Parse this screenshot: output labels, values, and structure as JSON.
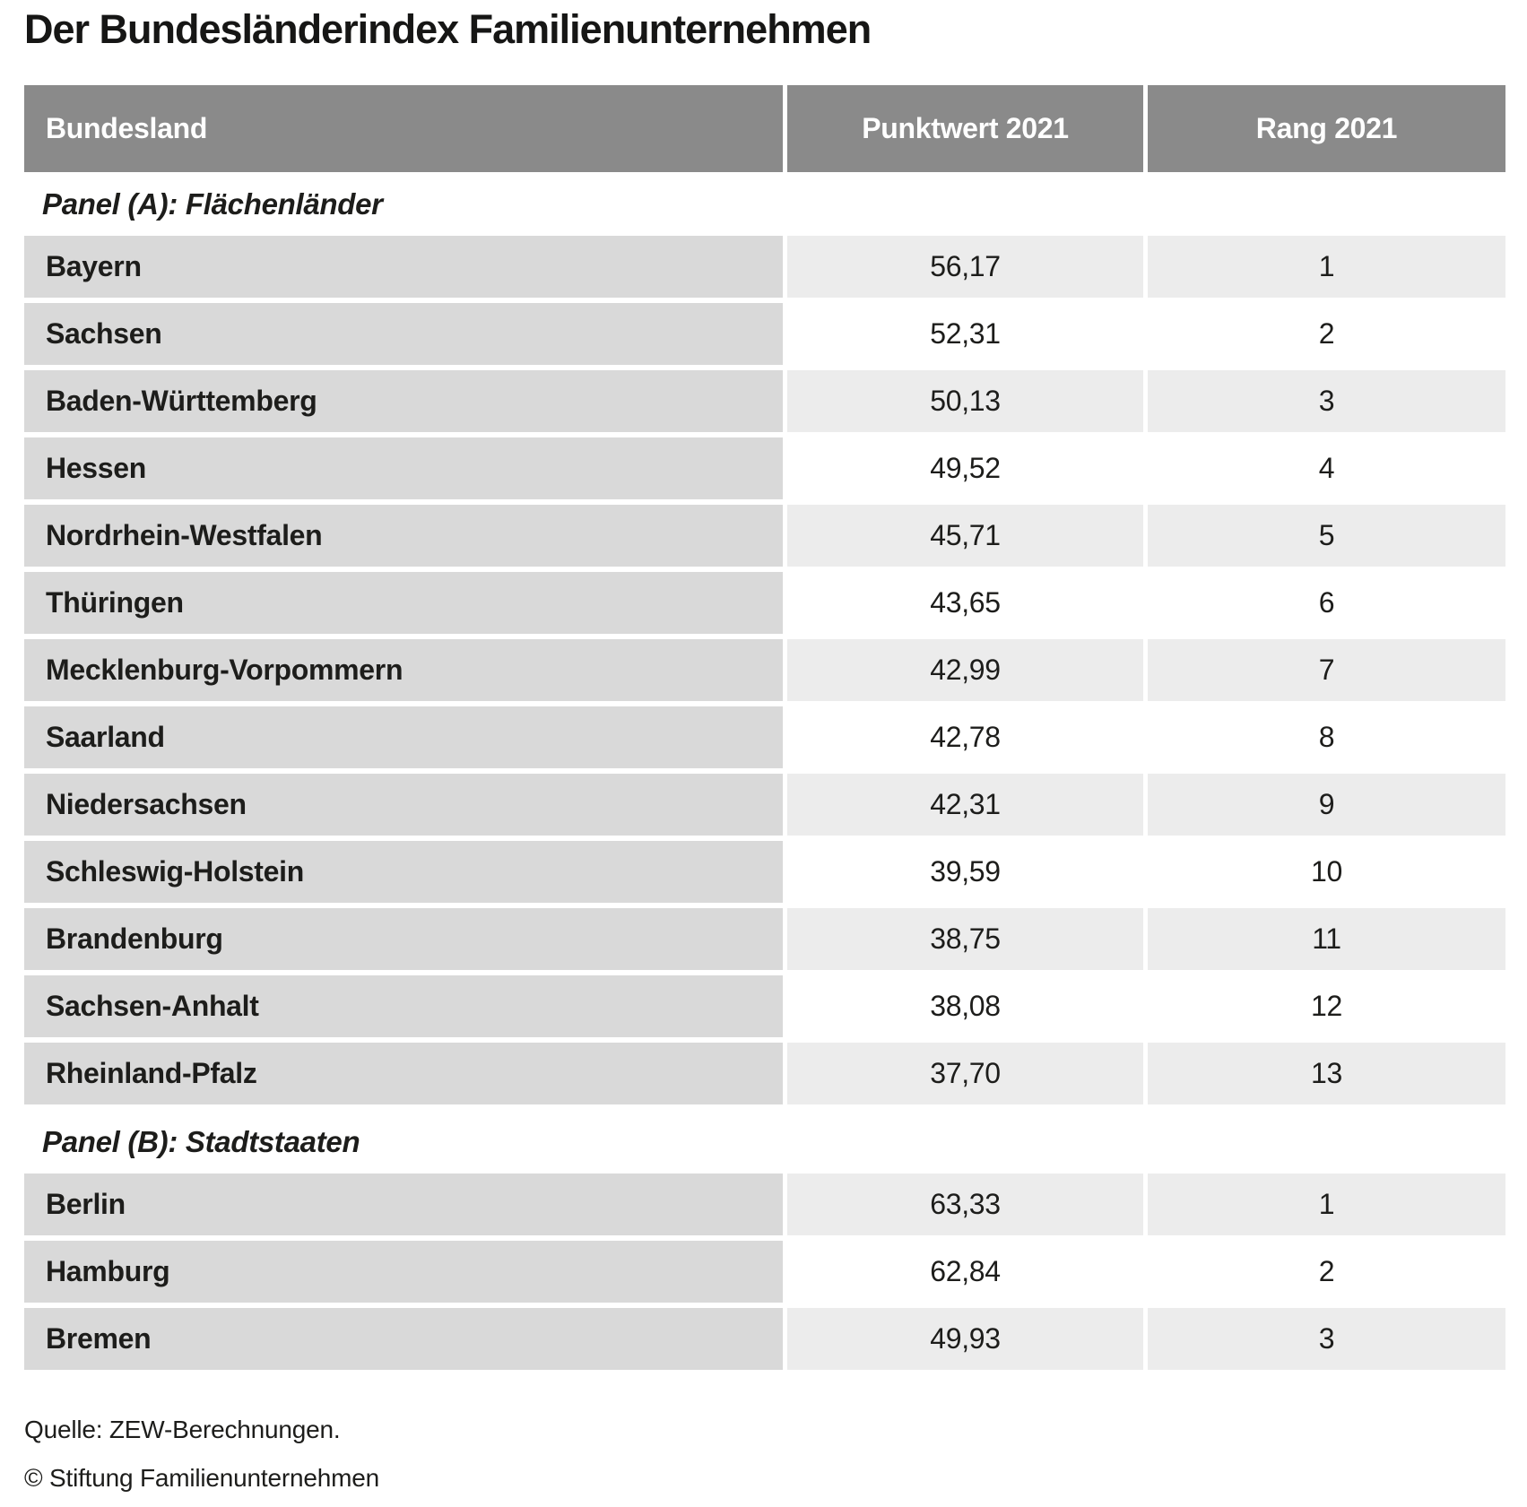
{
  "title": "Der Bundesländerindex Familienunternehmen",
  "table": {
    "columns": [
      "Bundesland",
      "Punktwert 2021",
      "Rang 2021"
    ],
    "panels": [
      {
        "label": "Panel (A): Flächenländer",
        "rows": [
          {
            "name": "Bayern",
            "punktwert": "56,17",
            "rang": "1"
          },
          {
            "name": "Sachsen",
            "punktwert": "52,31",
            "rang": "2"
          },
          {
            "name": "Baden-Württemberg",
            "punktwert": "50,13",
            "rang": "3"
          },
          {
            "name": "Hessen",
            "punktwert": "49,52",
            "rang": "4"
          },
          {
            "name": "Nordrhein-Westfalen",
            "punktwert": "45,71",
            "rang": "5"
          },
          {
            "name": "Thüringen",
            "punktwert": "43,65",
            "rang": "6"
          },
          {
            "name": "Mecklenburg-Vorpommern",
            "punktwert": "42,99",
            "rang": "7"
          },
          {
            "name": "Saarland",
            "punktwert": "42,78",
            "rang": "8"
          },
          {
            "name": "Niedersachsen",
            "punktwert": "42,31",
            "rang": "9"
          },
          {
            "name": "Schleswig-Holstein",
            "punktwert": "39,59",
            "rang": "10"
          },
          {
            "name": "Brandenburg",
            "punktwert": "38,75",
            "rang": "11"
          },
          {
            "name": "Sachsen-Anhalt",
            "punktwert": "38,08",
            "rang": "12"
          },
          {
            "name": "Rheinland-Pfalz",
            "punktwert": "37,70",
            "rang": "13"
          }
        ]
      },
      {
        "label": "Panel (B): Stadtstaaten",
        "rows": [
          {
            "name": "Berlin",
            "punktwert": "63,33",
            "rang": "1"
          },
          {
            "name": "Hamburg",
            "punktwert": "62,84",
            "rang": "2"
          },
          {
            "name": "Bremen",
            "punktwert": "49,93",
            "rang": "3"
          }
        ]
      }
    ]
  },
  "footer": {
    "source": "Quelle: ZEW-Berechnungen.",
    "copyright": "© Stiftung Familienunternehmen"
  },
  "colors": {
    "header_bg": "#8a8a8a",
    "header_text": "#ffffff",
    "row_label_bg": "#d9d9d9",
    "value_shade_bg": "#ececec",
    "text": "#1d1d1b"
  },
  "chart_data": {
    "type": "table",
    "title": "Der Bundesländerindex Familienunternehmen",
    "columns": [
      "Bundesland",
      "Punktwert 2021",
      "Rang 2021"
    ],
    "panels": [
      {
        "label": "Panel (A): Flächenländer",
        "rows": [
          [
            "Bayern",
            56.17,
            1
          ],
          [
            "Sachsen",
            52.31,
            2
          ],
          [
            "Baden-Württemberg",
            50.13,
            3
          ],
          [
            "Hessen",
            49.52,
            4
          ],
          [
            "Nordrhein-Westfalen",
            45.71,
            5
          ],
          [
            "Thüringen",
            43.65,
            6
          ],
          [
            "Mecklenburg-Vorpommern",
            42.99,
            7
          ],
          [
            "Saarland",
            42.78,
            8
          ],
          [
            "Niedersachsen",
            42.31,
            9
          ],
          [
            "Schleswig-Holstein",
            39.59,
            10
          ],
          [
            "Brandenburg",
            38.75,
            11
          ],
          [
            "Sachsen-Anhalt",
            38.08,
            12
          ],
          [
            "Rheinland-Pfalz",
            37.7,
            13
          ]
        ]
      },
      {
        "label": "Panel (B): Stadtstaaten",
        "rows": [
          [
            "Berlin",
            63.33,
            1
          ],
          [
            "Hamburg",
            62.84,
            2
          ],
          [
            "Bremen",
            49.93,
            3
          ]
        ]
      }
    ],
    "source": "Quelle: ZEW-Berechnungen."
  }
}
